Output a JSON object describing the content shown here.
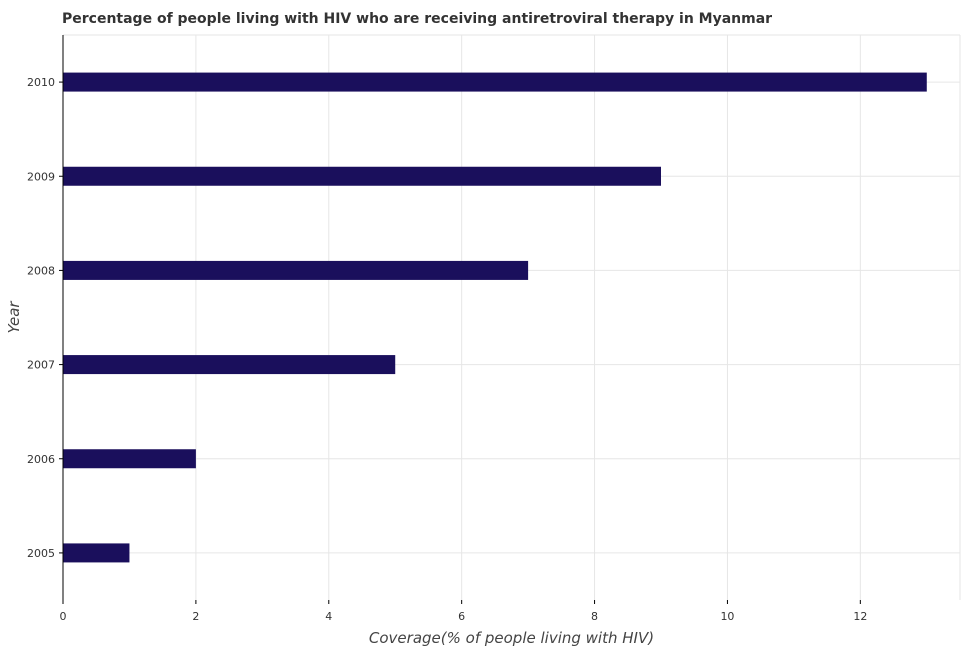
{
  "chart_data": {
    "type": "bar",
    "orientation": "horizontal",
    "title": "Percentage of people living with HIV who are receiving antiretroviral therapy in Myanmar",
    "xlabel": "Coverage(% of people living with HIV)",
    "ylabel": "Year",
    "categories": [
      "2005",
      "2006",
      "2007",
      "2008",
      "2009",
      "2010"
    ],
    "values": [
      1,
      2,
      5,
      7,
      9,
      13
    ],
    "xlim": [
      0,
      13.5
    ],
    "xticks": [
      0,
      2,
      4,
      6,
      8,
      10,
      12
    ],
    "xtick_labels": [
      "0",
      "2",
      "4",
      "6",
      "8",
      "10",
      "12"
    ],
    "grid": true,
    "bar_color": "#1a0f5c",
    "legend": null
  }
}
